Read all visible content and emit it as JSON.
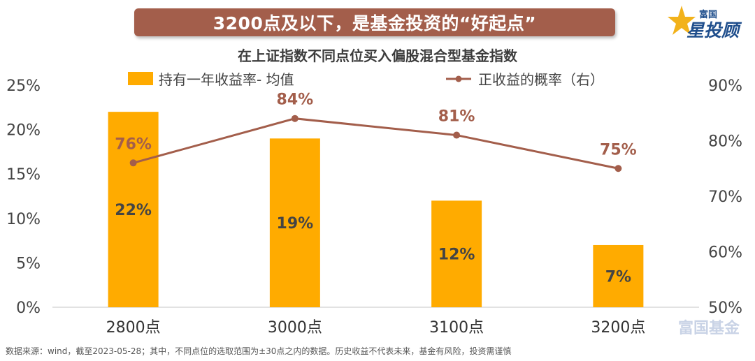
{
  "header": {
    "banner_text": "3200点及以下，是基金投资的“好起点”",
    "logo_small": "富国",
    "logo_big": "星投顾"
  },
  "watermark": "富国基金",
  "footnote": "数据来源：wind，截至2023-05-28；其中，不同点位的选取范围为±30点之内的数据。历史收益不代表未来，基金有风险，投资需谨慎",
  "colors": {
    "bar": "#ffab00",
    "line": "#a35e4b",
    "banner": "#a35e4b",
    "axis_text": "#444444"
  },
  "chart_data": {
    "type": "bar",
    "title": "在上证指数不同点位买入偏股混合型基金指数",
    "categories": [
      "2800点",
      "3000点",
      "3100点",
      "3200点"
    ],
    "series": [
      {
        "name": "持有一年收益率- 均值",
        "type": "bar",
        "axis": "left",
        "values": [
          22,
          19,
          12,
          7
        ],
        "labels": [
          "22%",
          "19%",
          "12%",
          "7%"
        ]
      },
      {
        "name": "正收益的概率（右）",
        "type": "line",
        "axis": "right",
        "values": [
          76,
          84,
          81,
          75
        ],
        "labels": [
          "76%",
          "84%",
          "81%",
          "75%"
        ]
      }
    ],
    "y_left": {
      "min": 0,
      "max": 25,
      "ticks": [
        "0%",
        "5%",
        "10%",
        "15%",
        "20%",
        "25%"
      ]
    },
    "y_right": {
      "min": 50,
      "max": 90,
      "ticks": [
        "50%",
        "60%",
        "70%",
        "80%",
        "90%"
      ]
    },
    "grid": false,
    "legend_position": "top"
  }
}
